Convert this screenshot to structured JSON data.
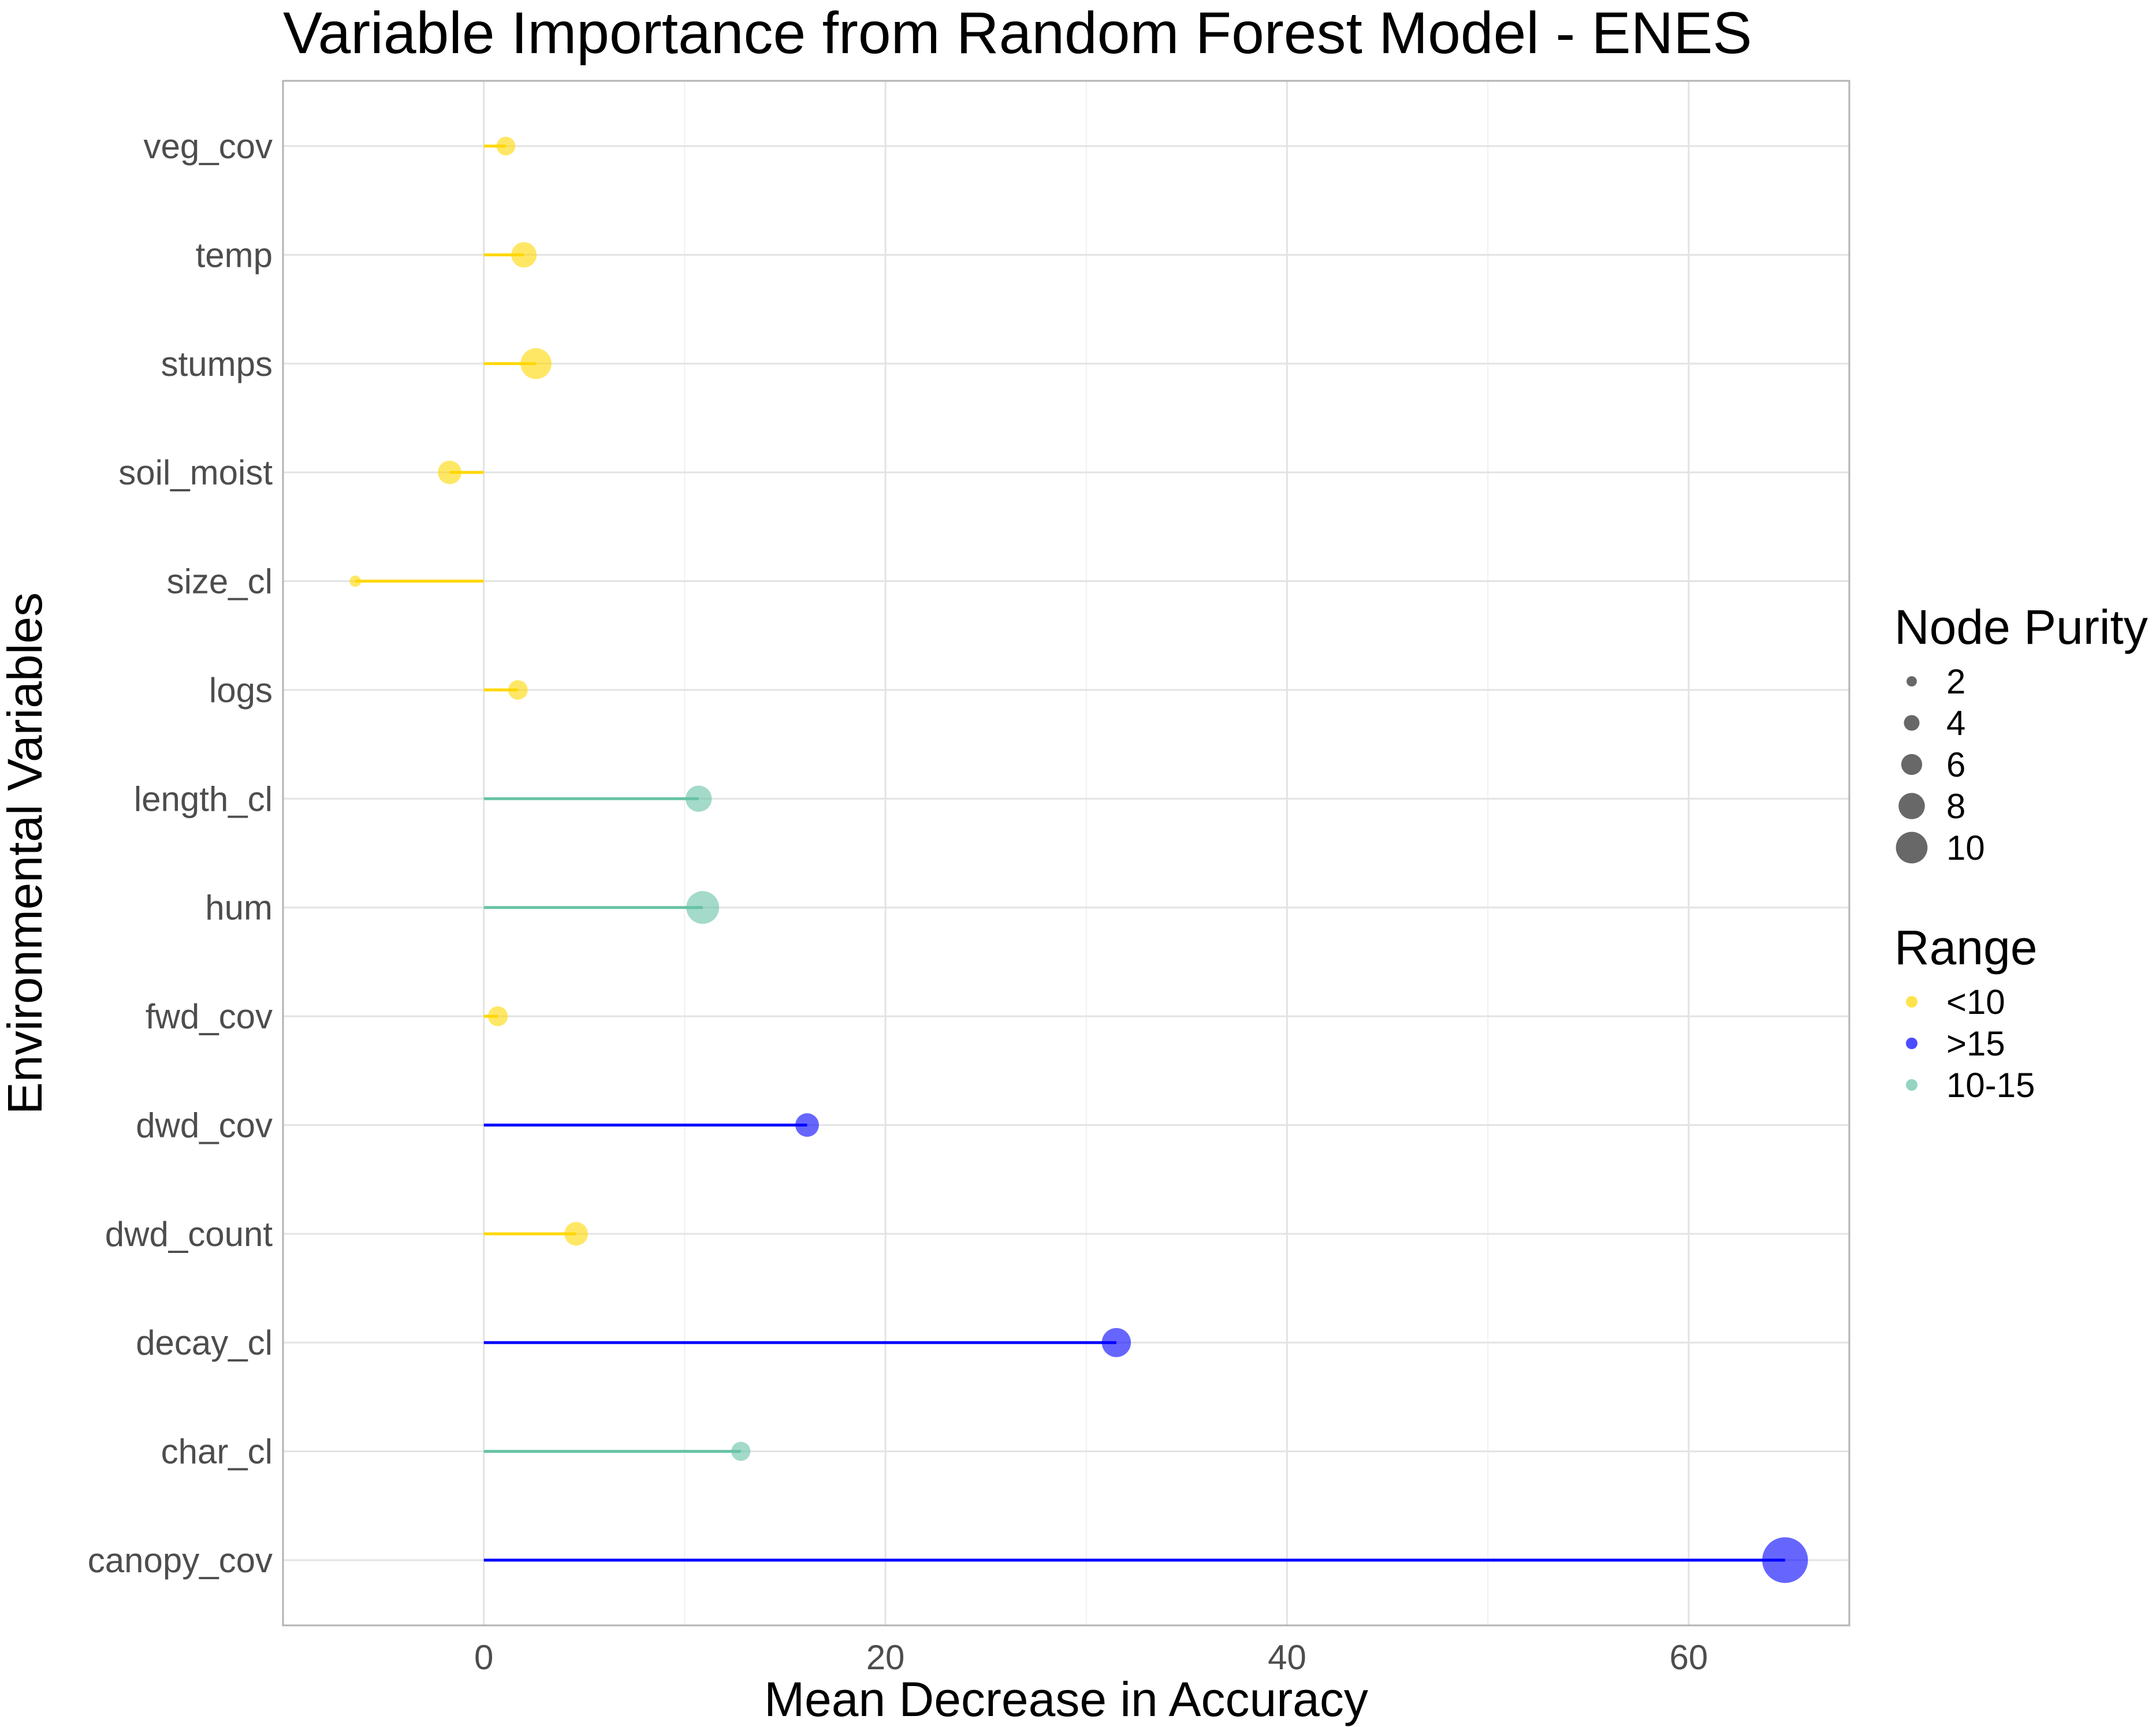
{
  "chart_data": {
    "type": "lollipop",
    "title": "Variable Importance from Random Forest Model - ENES",
    "xlabel": "Mean Decrease in Accuracy",
    "ylabel": "Environmental Variables",
    "xlim": [
      -10,
      68
    ],
    "x_ticks": [
      0,
      20,
      40,
      60
    ],
    "grid": true,
    "categories": [
      "veg_cov",
      "temp",
      "stumps",
      "soil_moist",
      "size_cl",
      "logs",
      "length_cl",
      "hum",
      "fwd_cov",
      "dwd_cov",
      "dwd_count",
      "decay_cl",
      "char_cl",
      "canopy_cov"
    ],
    "points": [
      {
        "variable": "veg_cov",
        "x": 1.1,
        "node_purity": 3.2,
        "range": "<10"
      },
      {
        "variable": "temp",
        "x": 2.0,
        "node_purity": 5.0,
        "range": "<10"
      },
      {
        "variable": "stumps",
        "x": 2.6,
        "node_purity": 6.5,
        "range": "<10"
      },
      {
        "variable": "soil_moist",
        "x": -1.7,
        "node_purity": 4.5,
        "range": "<10"
      },
      {
        "variable": "size_cl",
        "x": -6.4,
        "node_purity": 1.2,
        "range": "<10"
      },
      {
        "variable": "logs",
        "x": 1.7,
        "node_purity": 3.4,
        "range": "<10"
      },
      {
        "variable": "length_cl",
        "x": 10.7,
        "node_purity": 5.2,
        "range": "10-15"
      },
      {
        "variable": "hum",
        "x": 10.9,
        "node_purity": 7.0,
        "range": "10-15"
      },
      {
        "variable": "fwd_cov",
        "x": 0.7,
        "node_purity": 3.5,
        "range": "<10"
      },
      {
        "variable": "dwd_cov",
        "x": 16.1,
        "node_purity": 4.5,
        "range": ">15"
      },
      {
        "variable": "dwd_count",
        "x": 4.6,
        "node_purity": 4.5,
        "range": "<10"
      },
      {
        "variable": "decay_cl",
        "x": 31.5,
        "node_purity": 6.0,
        "range": ">15"
      },
      {
        "variable": "char_cl",
        "x": 12.8,
        "node_purity": 3.3,
        "range": "10-15"
      },
      {
        "variable": "canopy_cov",
        "x": 64.8,
        "node_purity": 10.5,
        "range": ">15"
      }
    ],
    "legend_position": "right",
    "size_legend": {
      "title": "Node Purity",
      "values": [
        2,
        4,
        6,
        8,
        10
      ],
      "labels": [
        "2",
        "4",
        "6",
        "8",
        "10"
      ],
      "color": "#4d4d4d"
    },
    "color_legend": {
      "title": "Range",
      "entries": [
        {
          "label": "<10",
          "color": "#FFD700"
        },
        {
          "label": ">15",
          "color": "#0000FF"
        },
        {
          "label": "10-15",
          "color": "#66C2A5"
        }
      ]
    },
    "colors": {
      "<10": "#FFD700",
      ">15": "#0000FF",
      "10-15": "#66C2A5"
    }
  }
}
